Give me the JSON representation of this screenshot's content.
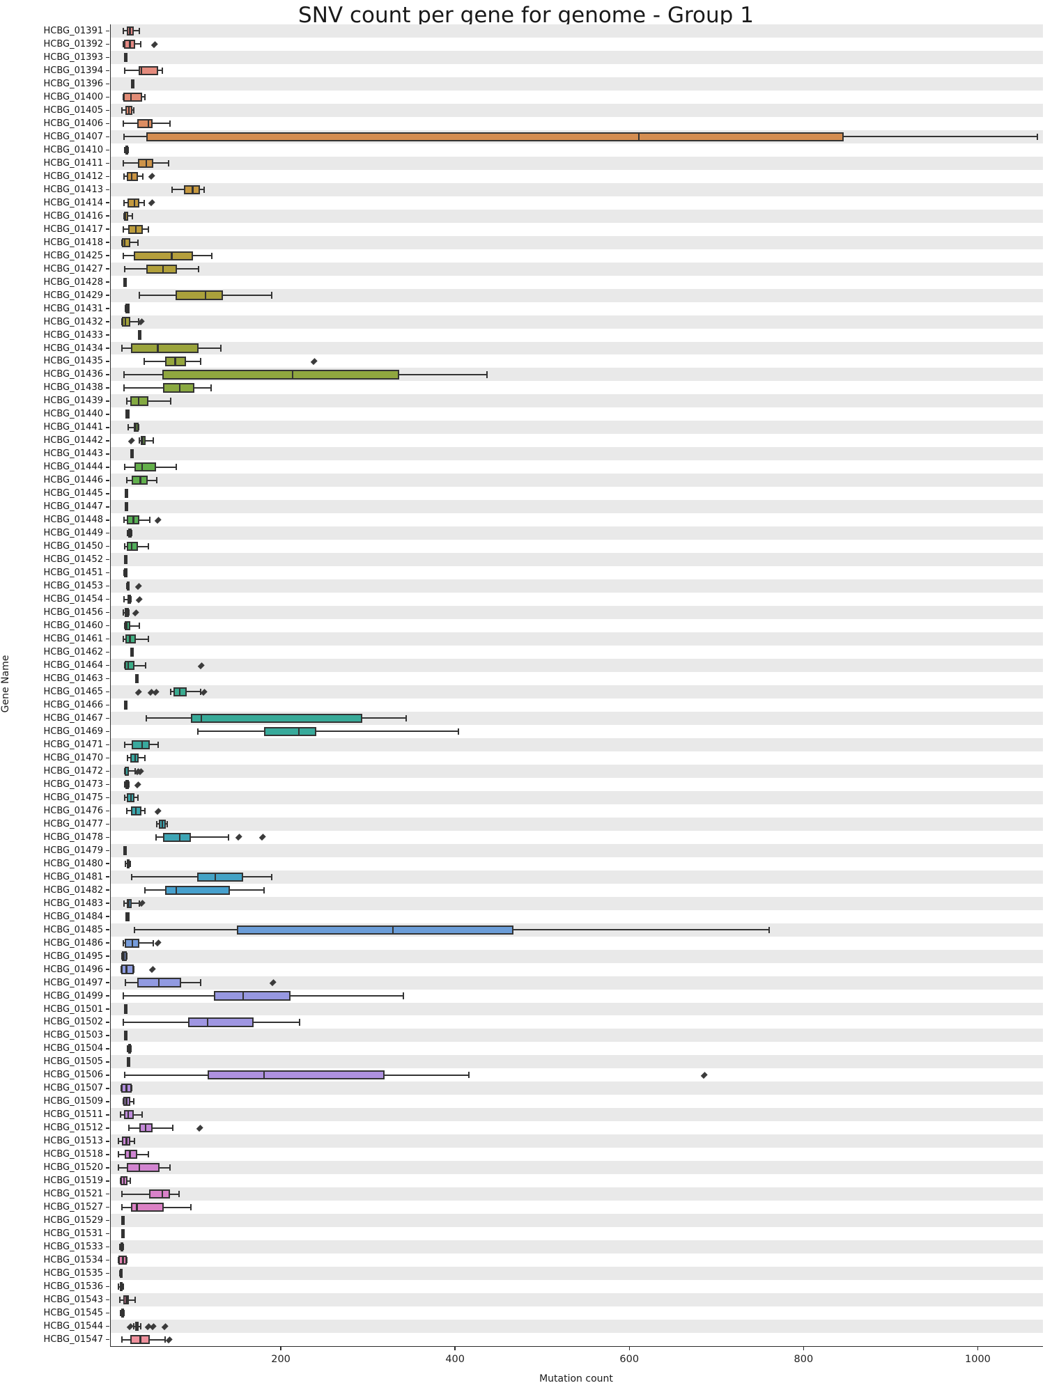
{
  "chart_data": {
    "type": "boxplot_h",
    "title": "SNV count per gene for genome - Group 1",
    "xlabel": "Mutation count",
    "ylabel": "Gene Name",
    "xlim": [
      4,
      1074
    ],
    "xticks": [
      200,
      400,
      600,
      800,
      1000
    ],
    "grid": "zebra-row-bands",
    "legend": "none",
    "band_color": "#e9e9e9",
    "edge_color": "#333333",
    "outlier_color": "#3b3b3b",
    "palette_anchors": [
      [
        0,
        "#e68a88"
      ],
      [
        6,
        "#e18c72"
      ],
      [
        8,
        "#d48d51"
      ],
      [
        12,
        "#c6983f"
      ],
      [
        18,
        "#b1a03b"
      ],
      [
        24,
        "#9ba43c"
      ],
      [
        28,
        "#84aa42"
      ],
      [
        33,
        "#64b04a"
      ],
      [
        40,
        "#4fae5e"
      ],
      [
        46,
        "#3eae80"
      ],
      [
        52,
        "#38aa98"
      ],
      [
        58,
        "#3aa7a9"
      ],
      [
        63,
        "#3fa3bd"
      ],
      [
        65,
        "#47a0cd"
      ],
      [
        68,
        "#6b9dd8"
      ],
      [
        71,
        "#8c9be0"
      ],
      [
        74,
        "#9c97e2"
      ],
      [
        78,
        "#a992e0"
      ],
      [
        81,
        "#b88ede"
      ],
      [
        84,
        "#cb86d6"
      ],
      [
        88,
        "#d981c9"
      ],
      [
        91,
        "#e180bd"
      ],
      [
        95,
        "#ea87ab"
      ],
      [
        99,
        "#ef909c"
      ]
    ],
    "rows": [
      {
        "gene": "HCBG_01391",
        "stats": [
          18,
          22,
          26,
          30,
          37
        ],
        "outliers": []
      },
      {
        "gene": "HCBG_01392",
        "stats": [
          18,
          19,
          26,
          32,
          38
        ],
        "outliers": [
          54
        ]
      },
      {
        "gene": "HCBG_01393",
        "stats": [
          20,
          20,
          20,
          20,
          20
        ],
        "outliers": []
      },
      {
        "gene": "HCBG_01394",
        "stats": [
          20,
          36,
          39,
          58,
          63
        ],
        "outliers": []
      },
      {
        "gene": "HCBG_01396",
        "stats": [
          28,
          28,
          28,
          28,
          28
        ],
        "outliers": []
      },
      {
        "gene": "HCBG_01400",
        "stats": [
          18,
          18,
          27,
          40,
          43
        ],
        "outliers": []
      },
      {
        "gene": "HCBG_01405",
        "stats": [
          17,
          21,
          25,
          29,
          30
        ],
        "outliers": []
      },
      {
        "gene": "HCBG_01406",
        "stats": [
          18,
          34,
          47,
          52,
          72
        ],
        "outliers": []
      },
      {
        "gene": "HCBG_01407",
        "stats": [
          19,
          45,
          610,
          845,
          1068
        ],
        "outliers": []
      },
      {
        "gene": "HCBG_01410",
        "stats": [
          20,
          21,
          22,
          23,
          24
        ],
        "outliers": []
      },
      {
        "gene": "HCBG_01411",
        "stats": [
          18,
          35,
          45,
          53,
          70
        ],
        "outliers": []
      },
      {
        "gene": "HCBG_01412",
        "stats": [
          19,
          22,
          28,
          35,
          41
        ],
        "outliers": [
          51
        ]
      },
      {
        "gene": "HCBG_01413",
        "stats": [
          74,
          88,
          98,
          106,
          111
        ],
        "outliers": []
      },
      {
        "gene": "HCBG_01414",
        "stats": [
          19,
          23,
          31,
          37,
          42
        ],
        "outliers": [
          51
        ]
      },
      {
        "gene": "HCBG_01416",
        "stats": [
          19,
          19,
          21,
          24,
          29
        ],
        "outliers": []
      },
      {
        "gene": "HCBG_01417",
        "stats": [
          18,
          24,
          33,
          41,
          47
        ],
        "outliers": []
      },
      {
        "gene": "HCBG_01418",
        "stats": [
          17,
          17,
          20,
          26,
          35
        ],
        "outliers": []
      },
      {
        "gene": "HCBG_01425",
        "stats": [
          18,
          30,
          74,
          98,
          120
        ],
        "outliers": []
      },
      {
        "gene": "HCBG_01427",
        "stats": [
          20,
          45,
          64,
          80,
          105
        ],
        "outliers": []
      },
      {
        "gene": "HCBG_01428",
        "stats": [
          19,
          19,
          19,
          19,
          19
        ],
        "outliers": []
      },
      {
        "gene": "HCBG_01429",
        "stats": [
          37,
          78,
          113,
          133,
          189
        ],
        "outliers": []
      },
      {
        "gene": "HCBG_01431",
        "stats": [
          21,
          22,
          22,
          22,
          23
        ],
        "outliers": []
      },
      {
        "gene": "HCBG_01432",
        "stats": [
          17,
          17,
          21,
          26,
          36
        ],
        "outliers": [
          39
        ]
      },
      {
        "gene": "HCBG_01433",
        "stats": [
          36,
          36,
          36,
          36,
          36
        ],
        "outliers": []
      },
      {
        "gene": "HCBG_01434",
        "stats": [
          17,
          27,
          58,
          105,
          130
        ],
        "outliers": []
      },
      {
        "gene": "HCBG_01435",
        "stats": [
          42,
          66,
          78,
          90,
          107
        ],
        "outliers": [
          237
        ]
      },
      {
        "gene": "HCBG_01436",
        "stats": [
          19,
          63,
          213,
          335,
          436
        ],
        "outliers": []
      },
      {
        "gene": "HCBG_01438",
        "stats": [
          19,
          64,
          83,
          100,
          119
        ],
        "outliers": []
      },
      {
        "gene": "HCBG_01439",
        "stats": [
          22,
          26,
          36,
          47,
          73
        ],
        "outliers": []
      },
      {
        "gene": "HCBG_01440",
        "stats": [
          22,
          22,
          22,
          22,
          22
        ],
        "outliers": []
      },
      {
        "gene": "HCBG_01441",
        "stats": [
          24,
          30,
          33,
          36,
          36
        ],
        "outliers": []
      },
      {
        "gene": "HCBG_01442",
        "stats": [
          37,
          38,
          41,
          44,
          53
        ],
        "outliers": [
          28
        ]
      },
      {
        "gene": "HCBG_01443",
        "stats": [
          27,
          27,
          27,
          27,
          27
        ],
        "outliers": []
      },
      {
        "gene": "HCBG_01444",
        "stats": [
          20,
          31,
          40,
          56,
          79
        ],
        "outliers": []
      },
      {
        "gene": "HCBG_01446",
        "stats": [
          22,
          28,
          38,
          46,
          57
        ],
        "outliers": []
      },
      {
        "gene": "HCBG_01445",
        "stats": [
          21,
          21,
          21,
          21,
          21
        ],
        "outliers": []
      },
      {
        "gene": "HCBG_01447",
        "stats": [
          21,
          21,
          21,
          21,
          21
        ],
        "outliers": []
      },
      {
        "gene": "HCBG_01448",
        "stats": [
          19,
          22,
          30,
          37,
          49
        ],
        "outliers": [
          58
        ]
      },
      {
        "gene": "HCBG_01449",
        "stats": [
          23,
          24,
          26,
          28,
          28
        ],
        "outliers": []
      },
      {
        "gene": "HCBG_01450",
        "stats": [
          20,
          22,
          28,
          35,
          47
        ],
        "outliers": []
      },
      {
        "gene": "HCBG_01452",
        "stats": [
          20,
          20,
          20,
          20,
          20
        ],
        "outliers": []
      },
      {
        "gene": "HCBG_01451",
        "stats": [
          19,
          20,
          20,
          21,
          22
        ],
        "outliers": []
      },
      {
        "gene": "HCBG_01453",
        "stats": [
          22,
          22,
          23,
          25,
          25
        ],
        "outliers": [
          36
        ]
      },
      {
        "gene": "HCBG_01454",
        "stats": [
          19,
          23,
          25,
          27,
          27
        ],
        "outliers": [
          37
        ]
      },
      {
        "gene": "HCBG_01456",
        "stats": [
          18,
          20,
          22,
          25,
          25
        ],
        "outliers": [
          33
        ]
      },
      {
        "gene": "HCBG_01460",
        "stats": [
          20,
          20,
          22,
          26,
          37
        ],
        "outliers": []
      },
      {
        "gene": "HCBG_01461",
        "stats": [
          18,
          21,
          26,
          33,
          47
        ],
        "outliers": []
      },
      {
        "gene": "HCBG_01462",
        "stats": [
          27,
          27,
          27,
          27,
          27
        ],
        "outliers": []
      },
      {
        "gene": "HCBG_01464",
        "stats": [
          20,
          20,
          24,
          31,
          44
        ],
        "outliers": [
          108
        ]
      },
      {
        "gene": "HCBG_01463",
        "stats": [
          33,
          33,
          33,
          33,
          33
        ],
        "outliers": []
      },
      {
        "gene": "HCBG_01465",
        "stats": [
          73,
          76,
          83,
          91,
          107
        ],
        "outliers": [
          36,
          50,
          56,
          111
        ]
      },
      {
        "gene": "HCBG_01466",
        "stats": [
          20,
          20,
          20,
          20,
          20
        ],
        "outliers": []
      },
      {
        "gene": "HCBG_01467",
        "stats": [
          45,
          96,
          108,
          293,
          343
        ],
        "outliers": []
      },
      {
        "gene": "HCBG_01469",
        "stats": [
          104,
          180,
          220,
          240,
          403
        ],
        "outliers": []
      },
      {
        "gene": "HCBG_01471",
        "stats": [
          20,
          28,
          40,
          49,
          58
        ],
        "outliers": []
      },
      {
        "gene": "HCBG_01470",
        "stats": [
          23,
          26,
          32,
          36,
          43
        ],
        "outliers": []
      },
      {
        "gene": "HCBG_01472",
        "stats": [
          20,
          20,
          21,
          25,
          32
        ],
        "outliers": [
          35,
          38
        ]
      },
      {
        "gene": "HCBG_01473",
        "stats": [
          20,
          21,
          22,
          25,
          25
        ],
        "outliers": [
          35
        ]
      },
      {
        "gene": "HCBG_01475",
        "stats": [
          20,
          22,
          27,
          31,
          35
        ],
        "outliers": []
      },
      {
        "gene": "HCBG_01476",
        "stats": [
          22,
          27,
          33,
          39,
          43
        ],
        "outliers": [
          58
        ]
      },
      {
        "gene": "HCBG_01477",
        "stats": [
          57,
          59,
          63,
          67,
          69
        ],
        "outliers": []
      },
      {
        "gene": "HCBG_01478",
        "stats": [
          56,
          64,
          83,
          96,
          139
        ],
        "outliers": [
          151,
          178
        ]
      },
      {
        "gene": "HCBG_01479",
        "stats": [
          19,
          19,
          19,
          19,
          19
        ],
        "outliers": []
      },
      {
        "gene": "HCBG_01480",
        "stats": [
          21,
          22,
          23,
          25,
          26
        ],
        "outliers": []
      },
      {
        "gene": "HCBG_01481",
        "stats": [
          28,
          103,
          124,
          156,
          189
        ],
        "outliers": []
      },
      {
        "gene": "HCBG_01482",
        "stats": [
          43,
          66,
          79,
          141,
          180
        ],
        "outliers": []
      },
      {
        "gene": "HCBG_01483",
        "stats": [
          19,
          22,
          25,
          28,
          37
        ],
        "outliers": [
          40
        ]
      },
      {
        "gene": "HCBG_01484",
        "stats": [
          22,
          22,
          22,
          22,
          22
        ],
        "outliers": []
      },
      {
        "gene": "HCBG_01485",
        "stats": [
          31,
          149,
          328,
          466,
          760
        ],
        "outliers": []
      },
      {
        "gene": "HCBG_01486",
        "stats": [
          18,
          20,
          29,
          37,
          53
        ],
        "outliers": [
          58
        ]
      },
      {
        "gene": "HCBG_01495",
        "stats": [
          17,
          17,
          19,
          22,
          22
        ],
        "outliers": []
      },
      {
        "gene": "HCBG_01496",
        "stats": [
          16,
          16,
          22,
          30,
          30
        ],
        "outliers": [
          52
        ]
      },
      {
        "gene": "HCBG_01497",
        "stats": [
          21,
          34,
          59,
          85,
          107
        ],
        "outliers": [
          190
        ]
      },
      {
        "gene": "HCBG_01499",
        "stats": [
          18,
          122,
          156,
          210,
          340
        ],
        "outliers": []
      },
      {
        "gene": "HCBG_01501",
        "stats": [
          20,
          20,
          20,
          20,
          20
        ],
        "outliers": []
      },
      {
        "gene": "HCBG_01502",
        "stats": [
          18,
          93,
          115,
          168,
          221
        ],
        "outliers": []
      },
      {
        "gene": "HCBG_01503",
        "stats": [
          20,
          20,
          20,
          20,
          20
        ],
        "outliers": []
      },
      {
        "gene": "HCBG_01504",
        "stats": [
          23,
          24,
          25,
          26,
          27
        ],
        "outliers": []
      },
      {
        "gene": "HCBG_01505",
        "stats": [
          23,
          23,
          23,
          23,
          23
        ],
        "outliers": []
      },
      {
        "gene": "HCBG_01506",
        "stats": [
          20,
          115,
          180,
          318,
          415
        ],
        "outliers": [
          685
        ]
      },
      {
        "gene": "HCBG_01507",
        "stats": [
          16,
          16,
          22,
          28,
          28
        ],
        "outliers": []
      },
      {
        "gene": "HCBG_01509",
        "stats": [
          18,
          18,
          22,
          26,
          30
        ],
        "outliers": []
      },
      {
        "gene": "HCBG_01511",
        "stats": [
          15,
          19,
          24,
          30,
          40
        ],
        "outliers": []
      },
      {
        "gene": "HCBG_01512",
        "stats": [
          25,
          37,
          44,
          52,
          75
        ],
        "outliers": [
          106
        ]
      },
      {
        "gene": "HCBG_01513",
        "stats": [
          13,
          17,
          22,
          26,
          31
        ],
        "outliers": []
      },
      {
        "gene": "HCBG_01518",
        "stats": [
          13,
          20,
          26,
          34,
          47
        ],
        "outliers": []
      },
      {
        "gene": "HCBG_01520",
        "stats": [
          13,
          22,
          37,
          60,
          72
        ],
        "outliers": []
      },
      {
        "gene": "HCBG_01519",
        "stats": [
          15,
          15,
          19,
          23,
          26
        ],
        "outliers": []
      },
      {
        "gene": "HCBG_01521",
        "stats": [
          17,
          48,
          63,
          72,
          82
        ],
        "outliers": []
      },
      {
        "gene": "HCBG_01527",
        "stats": [
          17,
          27,
          34,
          65,
          96
        ],
        "outliers": []
      },
      {
        "gene": "HCBG_01529",
        "stats": [
          17,
          17,
          17,
          17,
          17
        ],
        "outliers": []
      },
      {
        "gene": "HCBG_01531",
        "stats": [
          17,
          17,
          17,
          17,
          17
        ],
        "outliers": []
      },
      {
        "gene": "HCBG_01533",
        "stats": [
          14,
          15,
          16,
          17,
          18
        ],
        "outliers": []
      },
      {
        "gene": "HCBG_01534",
        "stats": [
          13,
          13,
          18,
          22,
          22
        ],
        "outliers": []
      },
      {
        "gene": "HCBG_01535",
        "stats": [
          14,
          14,
          15,
          16,
          17
        ],
        "outliers": []
      },
      {
        "gene": "HCBG_01536",
        "stats": [
          13,
          14,
          16,
          17,
          18
        ],
        "outliers": []
      },
      {
        "gene": "HCBG_01543",
        "stats": [
          14,
          18,
          22,
          25,
          32
        ],
        "outliers": []
      },
      {
        "gene": "HCBG_01545",
        "stats": [
          15,
          16,
          17,
          18,
          19
        ],
        "outliers": []
      },
      {
        "gene": "HCBG_01544",
        "stats": [
          30,
          32,
          34,
          36,
          38
        ],
        "outliers": [
          26,
          47,
          53,
          66
        ]
      },
      {
        "gene": "HCBG_01547",
        "stats": [
          17,
          26,
          38,
          49,
          66
        ],
        "outliers": [
          71
        ]
      }
    ]
  }
}
